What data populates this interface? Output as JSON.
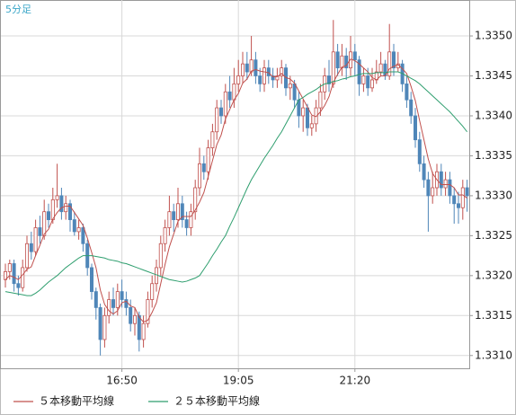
{
  "chart_data": {
    "type": "candlestick",
    "subtitle": "5分足",
    "categories": [
      null,
      null,
      null,
      null,
      null,
      null,
      null,
      null,
      null,
      null,
      null,
      null,
      null,
      null,
      null,
      null,
      null,
      null,
      null,
      null,
      null,
      null,
      null,
      null,
      null,
      null,
      null,
      "16:50",
      null,
      null,
      null,
      null,
      null,
      null,
      null,
      null,
      null,
      null,
      null,
      null,
      null,
      null,
      null,
      null,
      null,
      null,
      null,
      null,
      null,
      null,
      null,
      null,
      null,
      null,
      "19:05",
      null,
      null,
      null,
      null,
      null,
      null,
      null,
      null,
      null,
      null,
      null,
      null,
      null,
      null,
      null,
      null,
      null,
      null,
      null,
      null,
      null,
      null,
      null,
      null,
      null,
      null,
      "21:20",
      null,
      null,
      null,
      null,
      null,
      null,
      null,
      null,
      null,
      null,
      null,
      null,
      null,
      null,
      null,
      null,
      null,
      null,
      null,
      null,
      null,
      null,
      null,
      null,
      null,
      null
    ],
    "open": [
      1.33195,
      1.33205,
      1.33215,
      1.3319,
      1.33185,
      1.3321,
      1.3324,
      1.3323,
      1.3326,
      1.3325,
      1.3328,
      1.3327,
      1.33295,
      1.333,
      1.3328,
      1.3329,
      1.3327,
      1.33255,
      1.3326,
      1.3324,
      1.3321,
      1.3318,
      1.3316,
      1.3312,
      1.3315,
      1.3317,
      1.3316,
      1.3318,
      1.3317,
      1.3316,
      1.3314,
      1.3315,
      1.3312,
      1.3314,
      1.3317,
      1.3319,
      1.3321,
      1.3324,
      1.3326,
      1.3328,
      1.3327,
      1.3329,
      1.3327,
      1.3326,
      1.3328,
      1.3331,
      1.3334,
      1.3333,
      1.3336,
      1.3338,
      1.3341,
      1.334,
      1.3343,
      1.3342,
      1.3344,
      1.3345,
      1.33465,
      1.33455,
      1.3347,
      1.3345,
      1.3344,
      1.3346,
      1.3345,
      1.33445,
      1.3345,
      1.3346,
      1.33435,
      1.3344,
      1.3342,
      1.334,
      1.3341,
      1.33385,
      1.3339,
      1.3341,
      1.3343,
      1.3345,
      1.3344,
      1.3348,
      1.3346,
      1.33475,
      1.3346,
      1.3348,
      1.3347,
      1.3344,
      1.3345,
      1.33435,
      1.33445,
      1.33455,
      1.33465,
      1.3345,
      1.3348,
      1.3346,
      1.33465,
      1.3344,
      1.3342,
      1.334,
      1.3337,
      1.3334,
      1.3332,
      1.333,
      1.3331,
      1.3333,
      1.3331,
      1.3332,
      1.333,
      1.3329,
      1.33285,
      1.3331
    ],
    "high": [
      1.33215,
      1.3322,
      1.3322,
      1.332,
      1.3322,
      1.3325,
      1.33255,
      1.3327,
      1.33275,
      1.33295,
      1.3329,
      1.3331,
      1.3334,
      1.3331,
      1.333,
      1.33295,
      1.3328,
      1.3327,
      1.33265,
      1.33245,
      1.33215,
      1.33185,
      1.33165,
      1.3316,
      1.3318,
      1.33185,
      1.3319,
      1.33195,
      1.3318,
      1.3317,
      1.3316,
      1.33155,
      1.3315,
      1.3318,
      1.332,
      1.3322,
      1.3325,
      1.3327,
      1.333,
      1.3329,
      1.3331,
      1.333,
      1.3328,
      1.3329,
      1.3332,
      1.3336,
      1.3335,
      1.3337,
      1.3339,
      1.3342,
      1.3342,
      1.3344,
      1.3345,
      1.3346,
      1.3347,
      1.3348,
      1.3348,
      1.335,
      1.3348,
      1.3346,
      1.3347,
      1.3347,
      1.3346,
      1.3346,
      1.3347,
      1.33465,
      1.3345,
      1.33445,
      1.3343,
      1.3342,
      1.33415,
      1.334,
      1.3342,
      1.3344,
      1.3346,
      1.3347,
      1.3352,
      1.3349,
      1.3349,
      1.33485,
      1.335,
      1.3349,
      1.33475,
      1.3346,
      1.3346,
      1.3346,
      1.3347,
      1.3348,
      1.3347,
      1.33515,
      1.3349,
      1.3348,
      1.3347,
      1.3345,
      1.3343,
      1.3341,
      1.3338,
      1.3335,
      1.3333,
      1.3333,
      1.3334,
      1.3334,
      1.3333,
      1.3333,
      1.3331,
      1.33305,
      1.3332,
      1.3332
    ],
    "low": [
      1.33185,
      1.33195,
      1.3318,
      1.33175,
      1.3318,
      1.33205,
      1.3322,
      1.33225,
      1.3324,
      1.33245,
      1.3326,
      1.33265,
      1.33285,
      1.3327,
      1.3327,
      1.33255,
      1.3325,
      1.33245,
      1.3323,
      1.332,
      1.3317,
      1.33145,
      1.331,
      1.3311,
      1.3314,
      1.3315,
      1.3315,
      1.3316,
      1.3315,
      1.3313,
      1.33125,
      1.33105,
      1.3311,
      1.33135,
      1.3316,
      1.3318,
      1.332,
      1.3323,
      1.3325,
      1.33255,
      1.3326,
      1.3326,
      1.3325,
      1.3325,
      1.3327,
      1.333,
      1.3332,
      1.3332,
      1.3335,
      1.3337,
      1.3339,
      1.3339,
      1.3341,
      1.3341,
      1.3343,
      1.3344,
      1.33445,
      1.3345,
      1.3344,
      1.3343,
      1.3343,
      1.3344,
      1.33435,
      1.33435,
      1.3344,
      1.33425,
      1.3342,
      1.3341,
      1.33385,
      1.3338,
      1.33375,
      1.33375,
      1.3338,
      1.334,
      1.3342,
      1.3343,
      1.33435,
      1.3345,
      1.3345,
      1.33445,
      1.3345,
      1.3345,
      1.33425,
      1.3343,
      1.33425,
      1.3343,
      1.3344,
      1.3345,
      1.33445,
      1.33445,
      1.3345,
      1.33455,
      1.3343,
      1.3341,
      1.3339,
      1.3336,
      1.3333,
      1.3331,
      1.33255,
      1.3329,
      1.333,
      1.333,
      1.333,
      1.3329,
      1.33265,
      1.33265,
      1.3327,
      1.3328
    ],
    "close": [
      1.33205,
      1.33215,
      1.3319,
      1.33185,
      1.3321,
      1.3324,
      1.3323,
      1.3326,
      1.3325,
      1.3328,
      1.3327,
      1.33295,
      1.333,
      1.3328,
      1.3329,
      1.3327,
      1.33255,
      1.3326,
      1.3324,
      1.3321,
      1.3318,
      1.3316,
      1.3312,
      1.3315,
      1.3317,
      1.3316,
      1.3318,
      1.3317,
      1.3316,
      1.3314,
      1.3315,
      1.3312,
      1.3314,
      1.3317,
      1.3319,
      1.3321,
      1.3324,
      1.3326,
      1.3328,
      1.3327,
      1.3329,
      1.3327,
      1.3326,
      1.3328,
      1.3331,
      1.3334,
      1.3333,
      1.3336,
      1.3338,
      1.3341,
      1.334,
      1.3343,
      1.3342,
      1.3344,
      1.3345,
      1.33465,
      1.33455,
      1.3347,
      1.3345,
      1.3344,
      1.3346,
      1.3345,
      1.33445,
      1.3345,
      1.3346,
      1.33435,
      1.3344,
      1.3342,
      1.334,
      1.3341,
      1.33385,
      1.3339,
      1.3341,
      1.3343,
      1.3345,
      1.3344,
      1.3348,
      1.3346,
      1.33475,
      1.3346,
      1.3348,
      1.3347,
      1.3344,
      1.3345,
      1.33435,
      1.33445,
      1.33455,
      1.33465,
      1.3345,
      1.3348,
      1.3346,
      1.33465,
      1.3344,
      1.3342,
      1.334,
      1.3337,
      1.3334,
      1.3332,
      1.333,
      1.3331,
      1.3333,
      1.3331,
      1.3332,
      1.333,
      1.3329,
      1.33285,
      1.3331,
      1.333
    ],
    "up_color": "#c0504d",
    "down_color": "#4f86b8",
    "series": [
      {
        "name": "５本移動平均線",
        "color": "#c0504d",
        "values": [
          1.33195,
          1.332,
          1.33198,
          1.33195,
          1.33201,
          1.33208,
          1.33211,
          1.33225,
          1.33238,
          1.33252,
          1.33258,
          1.33271,
          1.33279,
          1.33285,
          1.33287,
          1.33287,
          1.33279,
          1.33271,
          1.33263,
          1.33247,
          1.33229,
          1.3321,
          1.33182,
          1.33164,
          1.33156,
          1.33152,
          1.33156,
          1.33166,
          1.33168,
          1.33162,
          1.3316,
          1.33148,
          1.33142,
          1.33144,
          1.33154,
          1.33166,
          1.3319,
          1.33214,
          1.33236,
          1.33252,
          1.33268,
          1.33274,
          1.33274,
          1.33274,
          1.33282,
          1.33292,
          1.33304,
          1.33324,
          1.33344,
          1.33364,
          1.33376,
          1.33396,
          1.33408,
          1.3342,
          1.33428,
          1.33441,
          1.33446,
          1.33456,
          1.33458,
          1.33456,
          1.33455,
          1.33454,
          1.33449,
          1.33449,
          1.33453,
          1.33448,
          1.33446,
          1.33441,
          1.33431,
          1.33421,
          1.33411,
          1.33401,
          1.33399,
          1.33405,
          1.33413,
          1.33424,
          1.33442,
          1.33452,
          1.33461,
          1.33463,
          1.33471,
          1.33469,
          1.33465,
          1.3346,
          1.33455,
          1.33448,
          1.33445,
          1.3345,
          1.3345,
          1.33459,
          1.33462,
          1.33464,
          1.33459,
          1.33453,
          1.33437,
          1.33419,
          1.33394,
          1.3337,
          1.33346,
          1.33328,
          1.3332,
          1.33314,
          1.33314,
          1.33314,
          1.3331,
          1.33301,
          1.33301,
          1.33297
        ]
      },
      {
        "name": "２５本移動平均線",
        "color": "#2e9e6e",
        "values": [
          1.3318,
          1.33179,
          1.33178,
          1.33177,
          1.33176,
          1.33175,
          1.33175,
          1.33178,
          1.33182,
          1.33187,
          1.33192,
          1.33196,
          1.332,
          1.33205,
          1.3321,
          1.33214,
          1.33218,
          1.33222,
          1.33225,
          1.33225,
          1.33225,
          1.33224,
          1.33223,
          1.33222,
          1.3322,
          1.33219,
          1.33218,
          1.33216,
          1.33215,
          1.33213,
          1.33211,
          1.33209,
          1.33207,
          1.33205,
          1.33203,
          1.33201,
          1.33199,
          1.33197,
          1.33195,
          1.33194,
          1.33193,
          1.33192,
          1.33193,
          1.33195,
          1.33197,
          1.332,
          1.33208,
          1.33216,
          1.33225,
          1.33233,
          1.33242,
          1.3325,
          1.33262,
          1.33273,
          1.33285,
          1.33297,
          1.33309,
          1.3332,
          1.33329,
          1.33338,
          1.33347,
          1.33355,
          1.33363,
          1.33372,
          1.3338,
          1.3339,
          1.334,
          1.3341,
          1.3342,
          1.33423,
          1.33427,
          1.3343,
          1.33433,
          1.33437,
          1.3344,
          1.33441,
          1.33443,
          1.33444,
          1.33446,
          1.33447,
          1.33449,
          1.3345,
          1.33452,
          1.33453,
          1.33453,
          1.33453,
          1.33454,
          1.33454,
          1.33454,
          1.33455,
          1.33455,
          1.33455,
          1.33453,
          1.3345,
          1.33447,
          1.33444,
          1.3344,
          1.33435,
          1.3343,
          1.33425,
          1.3342,
          1.33415,
          1.3341,
          1.33405,
          1.33399,
          1.33393,
          1.33387,
          1.3338
        ]
      }
    ],
    "ylim": [
      1.33084,
      1.33545
    ],
    "yticks": [
      {
        "value": 1.331,
        "label": "1.3310"
      },
      1.3315,
      {
        "value": 1.332,
        "label": "1.3320"
      },
      1.3325,
      {
        "value": 1.333,
        "label": "1.3330"
      },
      1.3335,
      {
        "value": 1.334,
        "label": "1.3340"
      },
      1.3345,
      {
        "value": 1.335,
        "label": "1.3350"
      }
    ],
    "grid": true
  }
}
